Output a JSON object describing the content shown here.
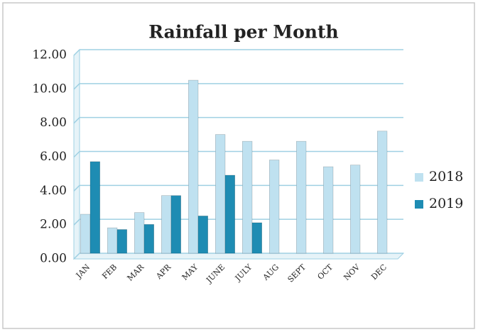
{
  "chart_data": {
    "type": "bar",
    "title": "Rainfall per Month",
    "categories": [
      "JAN",
      "FEB",
      "MAR",
      "APR",
      "MAY",
      "JUNE",
      "JULY",
      "AUG",
      "SEPT",
      "OCT",
      "NOV",
      "DEC"
    ],
    "series": [
      {
        "name": "2018",
        "color": "#bfe1f0",
        "values": [
          2.3,
          1.5,
          2.4,
          3.4,
          10.2,
          7.0,
          6.6,
          5.5,
          6.6,
          5.1,
          5.2,
          7.2
        ]
      },
      {
        "name": "2019",
        "color": "#1e8cb3",
        "values": [
          5.4,
          1.4,
          1.7,
          3.4,
          2.2,
          4.6,
          1.8,
          null,
          null,
          null,
          null,
          null
        ]
      }
    ],
    "ylim": [
      0,
      12
    ],
    "yticks": [
      {
        "value": 0,
        "label": "0.00"
      },
      {
        "value": 2,
        "label": "2.00"
      },
      {
        "value": 4,
        "label": "4.00"
      },
      {
        "value": 6,
        "label": "6.00"
      },
      {
        "value": 8,
        "label": "8.00"
      },
      {
        "value": 10,
        "label": "10.00"
      },
      {
        "value": 12,
        "label": "12.00"
      }
    ],
    "grid": true,
    "legend": "right"
  }
}
